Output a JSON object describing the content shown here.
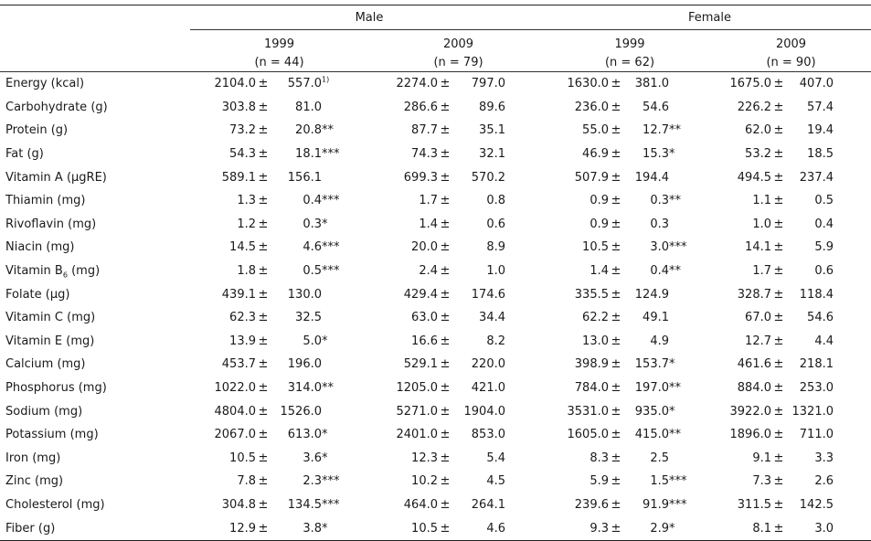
{
  "header": {
    "male": "Male",
    "female": "Female",
    "columns": [
      {
        "year": "1999",
        "n": "(n = 44)"
      },
      {
        "year": "2009",
        "n": "(n = 79)"
      },
      {
        "year": "1999",
        "n": "(n = 62)"
      },
      {
        "year": "2009",
        "n": "(n = 90)"
      }
    ]
  },
  "rows": [
    {
      "label": "Energy (kcal)",
      "cells": [
        [
          "2104.0",
          "557.0",
          "1)"
        ],
        [
          "2274.0",
          "797.0",
          ""
        ],
        [
          "1630.0",
          "381.0",
          ""
        ],
        [
          "1675.0",
          "407.0",
          ""
        ]
      ]
    },
    {
      "label": "Carbohydrate (g)",
      "cells": [
        [
          "303.8",
          "81.0",
          ""
        ],
        [
          "286.6",
          "89.6",
          ""
        ],
        [
          "236.0",
          "54.6",
          ""
        ],
        [
          "226.2",
          "57.4",
          ""
        ]
      ]
    },
    {
      "label": "Protein (g)",
      "cells": [
        [
          "73.2",
          "20.8",
          "**"
        ],
        [
          "87.7",
          "35.1",
          ""
        ],
        [
          "55.0",
          "12.7",
          "**"
        ],
        [
          "62.0",
          "19.4",
          ""
        ]
      ]
    },
    {
      "label": "Fat (g)",
      "cells": [
        [
          "54.3",
          "18.1",
          "***"
        ],
        [
          "74.3",
          "32.1",
          ""
        ],
        [
          "46.9",
          "15.3",
          "*"
        ],
        [
          "53.2",
          "18.5",
          ""
        ]
      ]
    },
    {
      "label": "Vitamin A (µgRE)",
      "cells": [
        [
          "589.1",
          "156.1",
          ""
        ],
        [
          "699.3",
          "570.2",
          ""
        ],
        [
          "507.9",
          "194.4",
          ""
        ],
        [
          "494.5",
          "237.4",
          ""
        ]
      ]
    },
    {
      "label": "Thiamin (mg)",
      "cells": [
        [
          "1.3",
          "0.4",
          "***"
        ],
        [
          "1.7",
          "0.8",
          ""
        ],
        [
          "0.9",
          "0.3",
          "**"
        ],
        [
          "1.1",
          "0.5",
          ""
        ]
      ]
    },
    {
      "label": "Rivoflavin (mg)",
      "cells": [
        [
          "1.2",
          "0.3",
          "*"
        ],
        [
          "1.4",
          "0.6",
          ""
        ],
        [
          "0.9",
          "0.3",
          ""
        ],
        [
          "1.0",
          "0.4",
          ""
        ]
      ]
    },
    {
      "label": "Niacin (mg)",
      "cells": [
        [
          "14.5",
          "4.6",
          "***"
        ],
        [
          "20.0",
          "8.9",
          ""
        ],
        [
          "10.5",
          "3.0",
          "***"
        ],
        [
          "14.1",
          "5.9",
          ""
        ]
      ]
    },
    {
      "label": "Vitamin B",
      "sub": "6",
      "suffix": " (mg)",
      "cells": [
        [
          "1.8",
          "0.5",
          "***"
        ],
        [
          "2.4",
          "1.0",
          ""
        ],
        [
          "1.4",
          "0.4",
          "**"
        ],
        [
          "1.7",
          "0.6",
          ""
        ]
      ]
    },
    {
      "label": "Folate (µg)",
      "cells": [
        [
          "439.1",
          "130.0",
          ""
        ],
        [
          "429.4",
          "174.6",
          ""
        ],
        [
          "335.5",
          "124.9",
          ""
        ],
        [
          "328.7",
          "118.4",
          ""
        ]
      ]
    },
    {
      "label": "Vitamin C (mg)",
      "cells": [
        [
          "62.3",
          "32.5",
          ""
        ],
        [
          "63.0",
          "34.4",
          ""
        ],
        [
          "62.2",
          "49.1",
          ""
        ],
        [
          "67.0",
          "54.6",
          ""
        ]
      ]
    },
    {
      "label": "Vitamin E (mg)",
      "cells": [
        [
          "13.9",
          "5.0",
          "*"
        ],
        [
          "16.6",
          "8.2",
          ""
        ],
        [
          "13.0",
          "4.9",
          ""
        ],
        [
          "12.7",
          "4.4",
          ""
        ]
      ]
    },
    {
      "label": "Calcium (mg)",
      "cells": [
        [
          "453.7",
          "196.0",
          ""
        ],
        [
          "529.1",
          "220.0",
          ""
        ],
        [
          "398.9",
          "153.7",
          "*"
        ],
        [
          "461.6",
          "218.1",
          ""
        ]
      ]
    },
    {
      "label": "Phosphorus (mg)",
      "cells": [
        [
          "1022.0",
          "314.0",
          "**"
        ],
        [
          "1205.0",
          "421.0",
          ""
        ],
        [
          "784.0",
          "197.0",
          "**"
        ],
        [
          "884.0",
          "253.0",
          ""
        ]
      ]
    },
    {
      "label": "Sodium (mg)",
      "cells": [
        [
          "4804.0",
          "1526.0",
          ""
        ],
        [
          "5271.0",
          "1904.0",
          ""
        ],
        [
          "3531.0",
          "935.0",
          "*"
        ],
        [
          "3922.0",
          "1321.0",
          ""
        ]
      ]
    },
    {
      "label": "Potassium (mg)",
      "cells": [
        [
          "2067.0",
          "613.0",
          "*"
        ],
        [
          "2401.0",
          "853.0",
          ""
        ],
        [
          "1605.0",
          "415.0",
          "**"
        ],
        [
          "1896.0",
          "711.0",
          ""
        ]
      ]
    },
    {
      "label": "Iron (mg)",
      "cells": [
        [
          "10.5",
          "3.6",
          "*"
        ],
        [
          "12.3",
          "5.4",
          ""
        ],
        [
          "8.3",
          "2.5",
          ""
        ],
        [
          "9.1",
          "3.3",
          ""
        ]
      ]
    },
    {
      "label": "Zinc (mg)",
      "cells": [
        [
          "7.8",
          "2.3",
          "***"
        ],
        [
          "10.2",
          "4.5",
          ""
        ],
        [
          "5.9",
          "1.5",
          "***"
        ],
        [
          "7.3",
          "2.6",
          ""
        ]
      ]
    },
    {
      "label": "Cholesterol (mg)",
      "cells": [
        [
          "304.8",
          "134.5",
          "***"
        ],
        [
          "464.0",
          "264.1",
          ""
        ],
        [
          "239.6",
          "91.9",
          "***"
        ],
        [
          "311.5",
          "142.5",
          ""
        ]
      ]
    },
    {
      "label": "Fiber (g)",
      "cells": [
        [
          "12.9",
          "3.8",
          "*"
        ],
        [
          "10.5",
          "4.6",
          ""
        ],
        [
          "9.3",
          "2.9",
          "*"
        ],
        [
          "8.1",
          "3.0",
          ""
        ]
      ]
    }
  ]
}
